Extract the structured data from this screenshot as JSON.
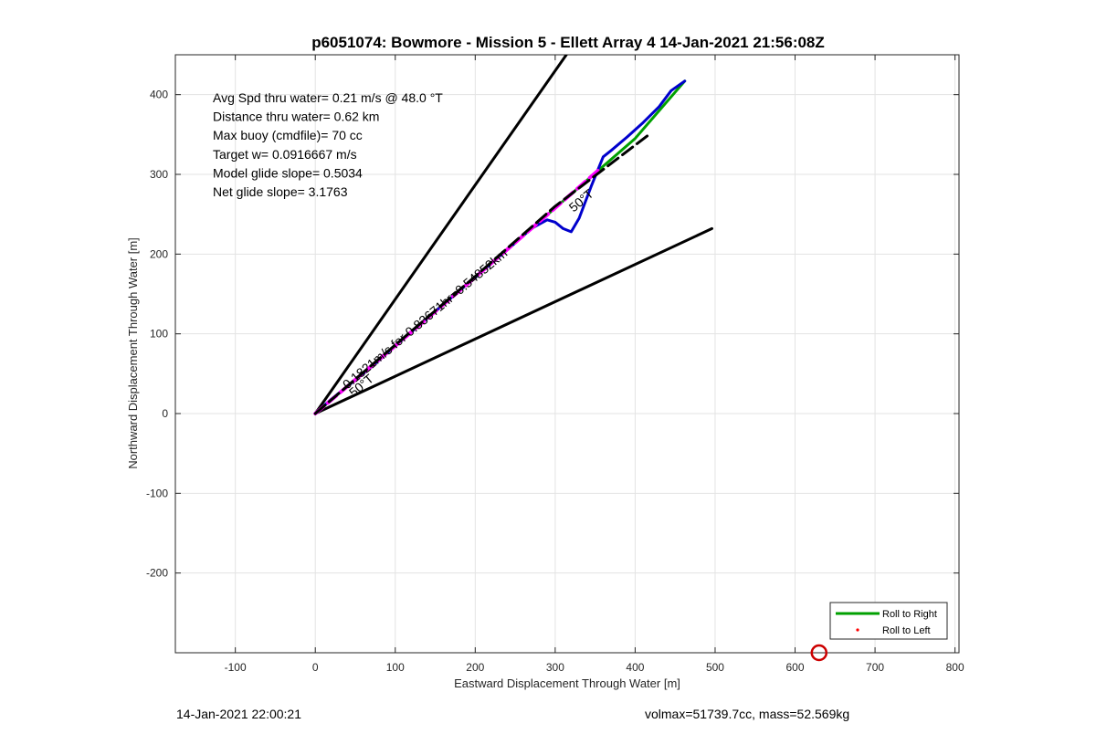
{
  "chart_data": {
    "type": "line",
    "title": "p6051074: Bowmore - Mission 5 - Ellett Array 4 14-Jan-2021 21:56:08Z",
    "xlabel": "Eastward Displacement Through Water [m]",
    "ylabel": "Northward Displacement Through Water [m]",
    "xlim": [
      -175,
      805
    ],
    "ylim": [
      -300,
      450
    ],
    "xticks": [
      -100,
      0,
      100,
      200,
      300,
      400,
      500,
      600,
      700,
      800
    ],
    "yticks": [
      -200,
      -100,
      0,
      100,
      200,
      300,
      400
    ],
    "grid": true,
    "legend_position": "bottom-right",
    "legend": [
      {
        "label": "Roll to Right",
        "color": "#00a000",
        "style": "line"
      },
      {
        "label": "Roll to Left",
        "color": "#ff0000",
        "style": "dot"
      }
    ],
    "info_lines": [
      "Avg Spd thru water=  0.21 m/s @  48.0 °T",
      "Distance thru water=  0.62 km",
      "Max buoy (cmdfile)= 70 cc",
      "Target w= 0.0916667 m/s",
      "Model glide slope= 0.5034",
      "Net glide slope= 3.1763"
    ],
    "annotations": [
      {
        "text": "0.1821m/s for 0.83671hr=0.54852km",
        "x": 40,
        "y": 30,
        "angle": 40
      },
      {
        "text": "50°T",
        "x": 48,
        "y": 20,
        "angle": 40
      },
      {
        "text": "50°T",
        "x": 323,
        "y": 252,
        "angle": 40
      }
    ],
    "series": [
      {
        "name": "cone-line-upper",
        "color": "#000000",
        "width": 3,
        "dash": "",
        "x": [
          0,
          314
        ],
        "y": [
          0,
          450
        ]
      },
      {
        "name": "cone-line-lower",
        "color": "#000000",
        "width": 3,
        "dash": "",
        "x": [
          0,
          496
        ],
        "y": [
          0,
          232
        ]
      },
      {
        "name": "",
        "color": "#00a000",
        "width": 3,
        "dash": "",
        "x": [
          0,
          100,
          200,
          300,
          400,
          462
        ],
        "y": [
          0,
          86,
          171,
          258,
          345,
          417
        ]
      },
      {
        "name": "",
        "color": "#0000cc",
        "width": 3,
        "dash": "",
        "x": [
          0,
          20,
          40,
          60,
          80,
          100,
          150,
          200,
          250,
          270,
          290,
          300,
          310,
          320,
          330,
          345,
          360,
          370,
          390,
          410,
          430,
          445,
          462
        ],
        "y": [
          0,
          18,
          34,
          50,
          67,
          85,
          128,
          171,
          214,
          232,
          243,
          240,
          232,
          228,
          245,
          285,
          322,
          330,
          347,
          365,
          385,
          405,
          417
        ]
      },
      {
        "name": "",
        "color": "#ff00ff",
        "width": 4,
        "dash": "12,6",
        "x": [
          0,
          100,
          200,
          300,
          355
        ],
        "y": [
          0,
          85,
          171,
          258,
          306
        ]
      },
      {
        "name": "",
        "color": "#000000",
        "width": 3,
        "dash": "14,6",
        "x": [
          0,
          100,
          200,
          300,
          420
        ],
        "y": [
          0,
          86,
          172,
          260,
          352
        ]
      }
    ],
    "marker": {
      "x": 630,
      "y": -300,
      "color": "#cc0000"
    }
  },
  "footer": {
    "timestamp": "14-Jan-2021 22:00:21",
    "volume_mass": "volmax=51739.7cc, mass=52.569kg"
  }
}
